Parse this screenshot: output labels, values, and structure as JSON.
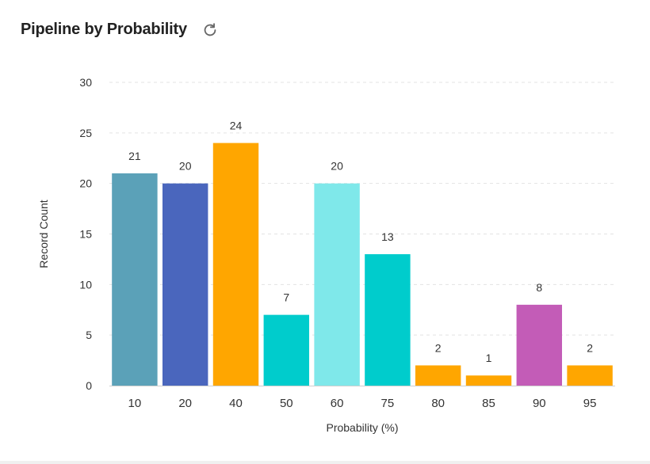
{
  "header": {
    "title": "Pipeline by Probability",
    "refresh_icon": "refresh-icon"
  },
  "chart_data": {
    "type": "bar",
    "title": "Pipeline by Probability",
    "xlabel": "Probability (%)",
    "ylabel": "Record Count",
    "categories": [
      "10",
      "20",
      "40",
      "50",
      "60",
      "75",
      "80",
      "85",
      "90",
      "95"
    ],
    "values": [
      21,
      20,
      24,
      7,
      20,
      13,
      2,
      1,
      8,
      2
    ],
    "colors": [
      "#5ba1b8",
      "#4a66bd",
      "#ffa600",
      "#00cccc",
      "#7fe8ea",
      "#00cccc",
      "#ffa600",
      "#ffa600",
      "#c35cb7",
      "#ffa600"
    ],
    "ylim": [
      0,
      30
    ],
    "yticks": [
      0,
      5,
      10,
      15,
      20,
      25,
      30
    ],
    "grid": true,
    "data_labels": true,
    "legend": "none"
  }
}
